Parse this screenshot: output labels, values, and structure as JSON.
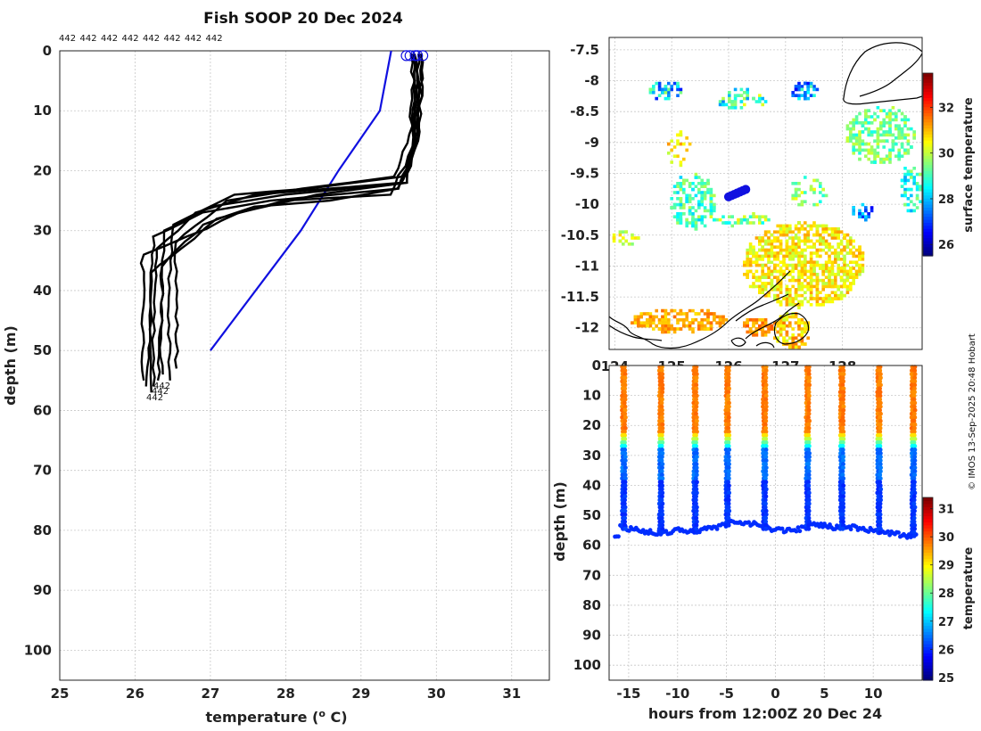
{
  "page_title": "Fish SOOP 20 Dec 2024",
  "copyright": "© IMOS 13-Sep-2025 20:48 Hobart",
  "colors": {
    "profile": "#000000",
    "climatology": "#1010e0",
    "marker": "#1010e0",
    "coast": "#000000"
  },
  "chart_data": [
    {
      "id": "profiles",
      "type": "line",
      "title": "Fish SOOP 20 Dec 2024",
      "xlabel": "temperature (o C)",
      "ylabel": "depth (m)",
      "xlim": [
        25,
        31.5
      ],
      "ylim": [
        0,
        105
      ],
      "y_reversed": true,
      "xticks": [
        "25",
        "26",
        "27",
        "28",
        "29",
        "30",
        "31"
      ],
      "yticks": [
        "0",
        "10",
        "20",
        "30",
        "40",
        "50",
        "60",
        "70",
        "80",
        "90",
        "100"
      ],
      "top_labels": [
        "442",
        "442",
        "442",
        "442",
        "442",
        "442",
        "442",
        "442"
      ],
      "bottom_labels": [
        "442",
        "442",
        "442"
      ],
      "grid": true,
      "series": [
        {
          "name": "climatology",
          "color": "#1010e0",
          "temperature": [
            29.4,
            29.25,
            28.7,
            28.2,
            27.6,
            27.0
          ],
          "depth": [
            0,
            10,
            20,
            30,
            40,
            50
          ]
        },
        {
          "name": "profile 1",
          "color": "#000000",
          "temperature": [
            29.7,
            29.72,
            29.7,
            29.6,
            28.0,
            27.0,
            26.4,
            26.35,
            26.35,
            26.3
          ],
          "depth": [
            0.5,
            5,
            15,
            22,
            24,
            26,
            30,
            35,
            45,
            55
          ]
        },
        {
          "name": "profile 2",
          "color": "#000000",
          "temperature": [
            29.75,
            29.78,
            29.72,
            29.5,
            27.8,
            26.9,
            26.25,
            26.2,
            26.2,
            26.15
          ],
          "depth": [
            0.5,
            6,
            16,
            23,
            25,
            27,
            31,
            37,
            48,
            56
          ]
        },
        {
          "name": "profile 3",
          "color": "#000000",
          "temperature": [
            29.65,
            29.7,
            29.65,
            29.45,
            28.2,
            27.2,
            26.55,
            26.55,
            26.55
          ],
          "depth": [
            0.5,
            5,
            14,
            21,
            23,
            25,
            32,
            40,
            53
          ]
        },
        {
          "name": "profile 4",
          "color": "#000000",
          "temperature": [
            29.8,
            29.8,
            29.75,
            29.6,
            28.4,
            27.4,
            26.7,
            26.1,
            26.1,
            26.1
          ],
          "depth": [
            0.5,
            6,
            15,
            22,
            24,
            27,
            31,
            34,
            44,
            55
          ]
        },
        {
          "name": "profile 5",
          "color": "#000000",
          "temperature": [
            29.7,
            29.75,
            29.7,
            29.55,
            27.6,
            26.8,
            26.3,
            26.25,
            26.25
          ],
          "depth": [
            0.5,
            5,
            14,
            22,
            24,
            27,
            33,
            42,
            56
          ]
        },
        {
          "name": "profile 6",
          "color": "#000000",
          "temperature": [
            29.72,
            29.76,
            29.72,
            29.5,
            28.6,
            27.6,
            26.9,
            26.35,
            26.35,
            26.35
          ],
          "depth": [
            0.5,
            5,
            15,
            23,
            25,
            26,
            29,
            36,
            45,
            54
          ]
        },
        {
          "name": "profile 7",
          "color": "#000000",
          "temperature": [
            29.68,
            29.72,
            29.68,
            29.4,
            28.0,
            27.1,
            26.6,
            26.2,
            26.2,
            26.2
          ],
          "depth": [
            0.5,
            5,
            16,
            24,
            25,
            28,
            33,
            37,
            47,
            57
          ]
        },
        {
          "name": "profile 8",
          "color": "#000000",
          "temperature": [
            29.78,
            29.8,
            29.75,
            29.55,
            28.3,
            27.3,
            26.5,
            26.45,
            26.45
          ],
          "depth": [
            0.5,
            6,
            15,
            21,
            23,
            24,
            29,
            38,
            55
          ]
        }
      ],
      "surface_markers_temperature": [
        29.6,
        29.65,
        29.72,
        29.75,
        29.82
      ]
    },
    {
      "id": "sst_map",
      "type": "heatmap",
      "colorbar_label": "surface temperature",
      "colorbar_ticks": [
        "26",
        "28",
        "30",
        "32"
      ],
      "colorbar_range": [
        25.5,
        33.5
      ],
      "xlim": [
        123.9,
        129.4
      ],
      "ylim": [
        -12.35,
        -7.3
      ],
      "yticks": [
        "-7.5",
        "-8",
        "-8.5",
        "-9",
        "-9.5",
        "-10",
        "-10.5",
        "-11",
        "-11.5",
        "-12"
      ],
      "xticks": [
        "124",
        "125",
        "126",
        "127",
        "128"
      ],
      "track_lon": [
        126.0,
        126.05,
        126.1,
        126.15,
        126.2,
        126.25,
        126.3
      ],
      "track_lat": [
        -9.88,
        -9.86,
        -9.84,
        -9.82,
        -9.8,
        -9.78,
        -9.76
      ]
    },
    {
      "id": "section",
      "type": "scatter",
      "xlabel": "hours from 12:00Z 20 Dec 24",
      "ylabel": "depth (m)",
      "xlim": [
        -17,
        15
      ],
      "ylim": [
        0,
        105
      ],
      "y_reversed": true,
      "xticks": [
        "-15",
        "-10",
        "-5",
        "0",
        "5",
        "10"
      ],
      "yticks": [
        "0",
        "10",
        "20",
        "30",
        "40",
        "50",
        "60",
        "70",
        "80",
        "90",
        "100"
      ],
      "colorbar_label": "temperature",
      "colorbar_ticks": [
        "25",
        "26",
        "27",
        "28",
        "29",
        "30",
        "31"
      ],
      "colorbar_range": [
        24.9,
        31.4
      ],
      "profile_hours": [
        -15.5,
        -11.7,
        -8.2,
        -4.9,
        -1.1,
        3.3,
        6.8,
        10.6,
        14.1
      ],
      "bottom_depth_hours": [
        -16,
        -14,
        -12,
        -10,
        -8,
        -6,
        -4,
        -2,
        0,
        2,
        4,
        6,
        8,
        10,
        12,
        14
      ],
      "bottom_depth_m": [
        54,
        55,
        56,
        55,
        55,
        54,
        52,
        53,
        55,
        55,
        53,
        54,
        54,
        55,
        56,
        57
      ],
      "thermocline_m": 23
    }
  ]
}
